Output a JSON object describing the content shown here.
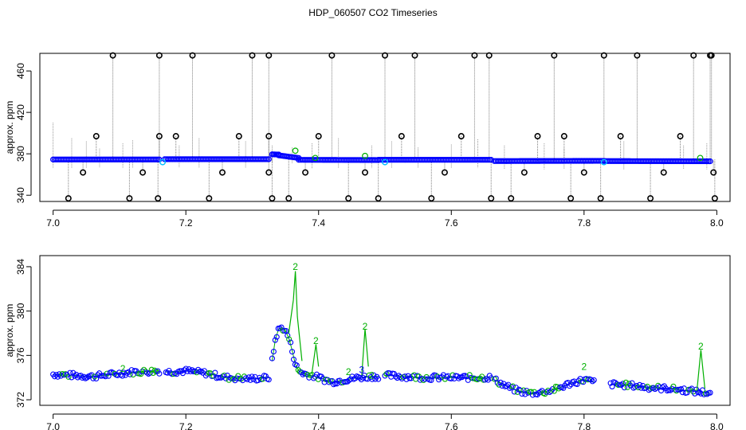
{
  "page_title": "HDP_060507  CO2 Timeseries",
  "colors": {
    "raw": "#000000",
    "drop": "#7f7f7f",
    "main": "#0000ff",
    "flagged": "#00c0ff",
    "green": "#00b000"
  },
  "chart_data": [
    {
      "type": "scatter",
      "title": "",
      "xlabel": "",
      "ylabel": "approx. ppm",
      "xlim": [
        6.98,
        8.02
      ],
      "ylim": [
        334,
        477
      ],
      "x_ticks": [
        "7.0",
        "7.2",
        "7.4",
        "7.6",
        "7.8",
        "8.0"
      ],
      "y_ticks": [
        "340",
        "380",
        "420",
        "460"
      ],
      "y_tick_values": [
        340,
        380,
        420,
        460
      ],
      "x_tick_values": [
        7.0,
        7.2,
        7.4,
        7.6,
        7.8,
        8.0
      ],
      "baseline_segments": [
        {
          "x": [
            7.0,
            7.16
          ],
          "y": [
            374.5,
            374.5
          ]
        },
        {
          "x": [
            7.168,
            7.325
          ],
          "y": [
            374.8,
            374.8
          ]
        },
        {
          "x": [
            7.33,
            7.34
          ],
          "y": [
            379.5,
            379.3
          ]
        },
        {
          "x": [
            7.34,
            7.37
          ],
          "y": [
            378.5,
            376.0
          ]
        },
        {
          "x": [
            7.37,
            7.49
          ],
          "y": [
            374.2,
            374.0
          ]
        },
        {
          "x": [
            7.49,
            7.66
          ],
          "y": [
            374.2,
            374.2
          ]
        },
        {
          "x": [
            7.665,
            7.83
          ],
          "y": [
            373.0,
            373.2
          ]
        },
        {
          "x": [
            7.83,
            7.99
          ],
          "y": [
            373.0,
            372.8
          ]
        }
      ],
      "flagged_points": [
        {
          "x": 7.165,
          "y": 372
        },
        {
          "x": 7.5,
          "y": 372
        },
        {
          "x": 7.83,
          "y": 372
        }
      ],
      "green_points": [
        {
          "x": 7.365,
          "y": 383
        },
        {
          "x": 7.395,
          "y": 376
        },
        {
          "x": 7.47,
          "y": 378
        },
        {
          "x": 7.975,
          "y": 376
        }
      ],
      "outliers": [
        {
          "x": 7.09,
          "y": 475
        },
        {
          "x": 7.16,
          "y": 475
        },
        {
          "x": 7.21,
          "y": 475
        },
        {
          "x": 7.3,
          "y": 475
        },
        {
          "x": 7.325,
          "y": 475
        },
        {
          "x": 7.42,
          "y": 475
        },
        {
          "x": 7.5,
          "y": 475
        },
        {
          "x": 7.545,
          "y": 475
        },
        {
          "x": 7.635,
          "y": 475
        },
        {
          "x": 7.657,
          "y": 475
        },
        {
          "x": 7.755,
          "y": 475
        },
        {
          "x": 7.83,
          "y": 475
        },
        {
          "x": 7.88,
          "y": 475
        },
        {
          "x": 7.965,
          "y": 475
        },
        {
          "x": 7.99,
          "y": 475
        },
        {
          "x": 7.992,
          "y": 475
        },
        {
          "x": 7.065,
          "y": 397
        },
        {
          "x": 7.16,
          "y": 397
        },
        {
          "x": 7.185,
          "y": 397
        },
        {
          "x": 7.28,
          "y": 397
        },
        {
          "x": 7.325,
          "y": 397
        },
        {
          "x": 7.4,
          "y": 397
        },
        {
          "x": 7.525,
          "y": 397
        },
        {
          "x": 7.615,
          "y": 397
        },
        {
          "x": 7.73,
          "y": 397
        },
        {
          "x": 7.77,
          "y": 397
        },
        {
          "x": 7.855,
          "y": 397
        },
        {
          "x": 7.945,
          "y": 397
        },
        {
          "x": 7.325,
          "y": 362
        },
        {
          "x": 7.045,
          "y": 362
        },
        {
          "x": 7.135,
          "y": 362
        },
        {
          "x": 7.255,
          "y": 362
        },
        {
          "x": 7.38,
          "y": 362
        },
        {
          "x": 7.47,
          "y": 362
        },
        {
          "x": 7.59,
          "y": 362
        },
        {
          "x": 7.71,
          "y": 362
        },
        {
          "x": 7.8,
          "y": 362
        },
        {
          "x": 7.92,
          "y": 362
        },
        {
          "x": 7.995,
          "y": 362
        },
        {
          "x": 7.023,
          "y": 337
        },
        {
          "x": 7.115,
          "y": 337
        },
        {
          "x": 7.158,
          "y": 337
        },
        {
          "x": 7.235,
          "y": 337
        },
        {
          "x": 7.33,
          "y": 337
        },
        {
          "x": 7.355,
          "y": 337
        },
        {
          "x": 7.445,
          "y": 337
        },
        {
          "x": 7.49,
          "y": 337
        },
        {
          "x": 7.57,
          "y": 337
        },
        {
          "x": 7.66,
          "y": 337
        },
        {
          "x": 7.69,
          "y": 337
        },
        {
          "x": 7.78,
          "y": 337
        },
        {
          "x": 7.825,
          "y": 337
        },
        {
          "x": 7.9,
          "y": 337
        },
        {
          "x": 7.997,
          "y": 337
        }
      ]
    },
    {
      "type": "scatter",
      "title": "",
      "xlabel": "",
      "ylabel": "approx. ppm",
      "xlim": [
        6.98,
        8.02
      ],
      "ylim": [
        371.5,
        385
      ],
      "x_ticks": [
        "7.0",
        "7.2",
        "7.4",
        "7.6",
        "7.8",
        "8.0"
      ],
      "y_ticks": [
        "372",
        "376",
        "380",
        "384"
      ],
      "y_tick_values": [
        372,
        376,
        380,
        384
      ],
      "x_tick_values": [
        7.0,
        7.2,
        7.4,
        7.6,
        7.8,
        8.0
      ],
      "series": [
        {
          "segments": [
            {
              "x": [
                7.0,
                7.03,
                7.06,
                7.09,
                7.12,
                7.16
              ],
              "y": [
                374.3,
                374.2,
                374.1,
                374.3,
                374.5,
                374.6
              ]
            },
            {
              "x": [
                7.17,
                7.2,
                7.23,
                7.26,
                7.3,
                7.325
              ],
              "y": [
                374.5,
                374.6,
                374.4,
                374.0,
                373.9,
                374.0
              ]
            },
            {
              "x": [
                7.33,
                7.335,
                7.34,
                7.345,
                7.35,
                7.355,
                7.36,
                7.365,
                7.37,
                7.38,
                7.39,
                7.4,
                7.42,
                7.44,
                7.46,
                7.48,
                7.49
              ],
              "y": [
                375.5,
                377.5,
                378.4,
                378.5,
                378.2,
                377.6,
                376.5,
                375.2,
                374.6,
                374.3,
                374.2,
                374.0,
                373.6,
                373.8,
                374.0,
                374.1,
                374.1
              ]
            },
            {
              "x": [
                7.5,
                7.53,
                7.56,
                7.6,
                7.63,
                7.66
              ],
              "y": [
                374.2,
                374.1,
                374.0,
                374.0,
                374.0,
                374.0
              ]
            },
            {
              "x": [
                7.665,
                7.68,
                7.7,
                7.72,
                7.74,
                7.76,
                7.78,
                7.8,
                7.815
              ],
              "y": [
                373.8,
                373.3,
                372.8,
                372.6,
                372.7,
                373.0,
                373.5,
                373.8,
                373.6
              ]
            },
            {
              "x": [
                7.84,
                7.87,
                7.9,
                7.93,
                7.96,
                7.99
              ],
              "y": [
                373.4,
                373.3,
                373.1,
                373.0,
                372.8,
                372.6
              ]
            }
          ]
        }
      ],
      "spikes": [
        {
          "x": [
            7.355,
            7.362,
            7.365,
            7.368,
            7.375
          ],
          "y": [
            378.0,
            381.0,
            383.6,
            379.5,
            375.5
          ],
          "label": "2",
          "peak": 384
        },
        {
          "x": [
            7.39,
            7.396,
            7.4
          ],
          "y": [
            374.4,
            377.0,
            375.0
          ],
          "label": "2",
          "peak": 377.3
        },
        {
          "x": [
            7.465,
            7.47,
            7.475
          ],
          "y": [
            374.2,
            378.4,
            375.0
          ],
          "label": "2",
          "peak": 378.6
        },
        {
          "x": [
            7.97,
            7.976,
            7.982
          ],
          "y": [
            372.8,
            376.5,
            373.0
          ],
          "label": "2",
          "peak": 376.8
        },
        {
          "x": [
            7.105
          ],
          "y": [
            374.6
          ],
          "label": "2",
          "peak": 374.8
        },
        {
          "x": [
            7.8
          ],
          "y": [
            374.5
          ],
          "label": "2",
          "peak": 375.0
        },
        {
          "x": [
            7.445
          ],
          "y": [
            374.3
          ],
          "label": "2",
          "peak": 374.5
        }
      ],
      "inline_labels": [
        {
          "x": 7.465,
          "y": 374.7,
          "text": "3"
        },
        {
          "x": 7.48,
          "y": 374.2,
          "text": "2"
        }
      ]
    }
  ]
}
